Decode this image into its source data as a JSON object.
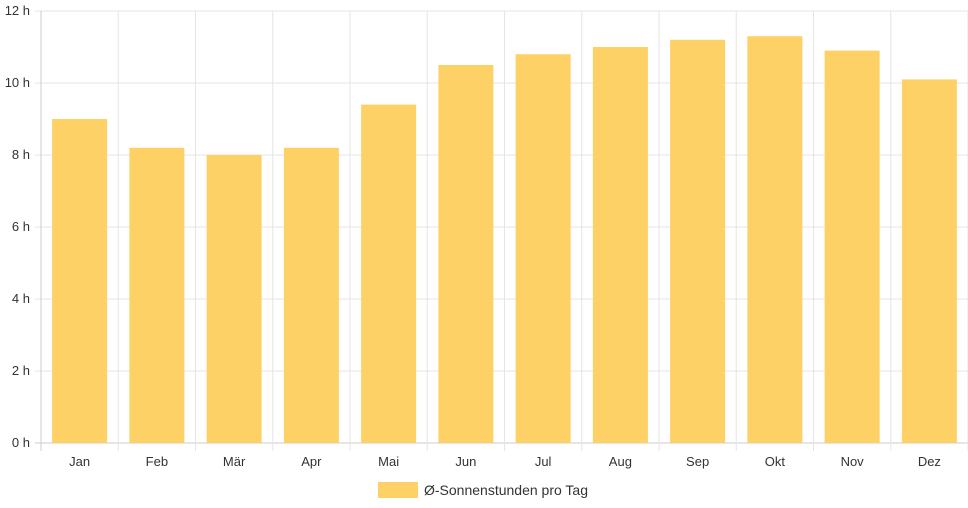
{
  "chart_data": {
    "type": "bar",
    "categories": [
      "Jan",
      "Feb",
      "Mär",
      "Apr",
      "Mai",
      "Jun",
      "Jul",
      "Aug",
      "Sep",
      "Okt",
      "Nov",
      "Dez"
    ],
    "series": [
      {
        "name": "Ø-Sonnenstunden pro Tag",
        "values": [
          9.0,
          8.2,
          8.0,
          8.2,
          9.4,
          10.5,
          10.8,
          11.0,
          11.2,
          11.3,
          10.9,
          10.1
        ]
      }
    ],
    "ylim": [
      0,
      12
    ],
    "yticks": [
      0,
      2,
      4,
      6,
      8,
      10,
      12
    ],
    "y_tick_suffix": " h",
    "grid": true,
    "legend_position": "bottom",
    "colors": {
      "bar": "#fed166",
      "grid": "#e5e5e5",
      "axis": "#cccccc",
      "text": "#333333"
    }
  }
}
